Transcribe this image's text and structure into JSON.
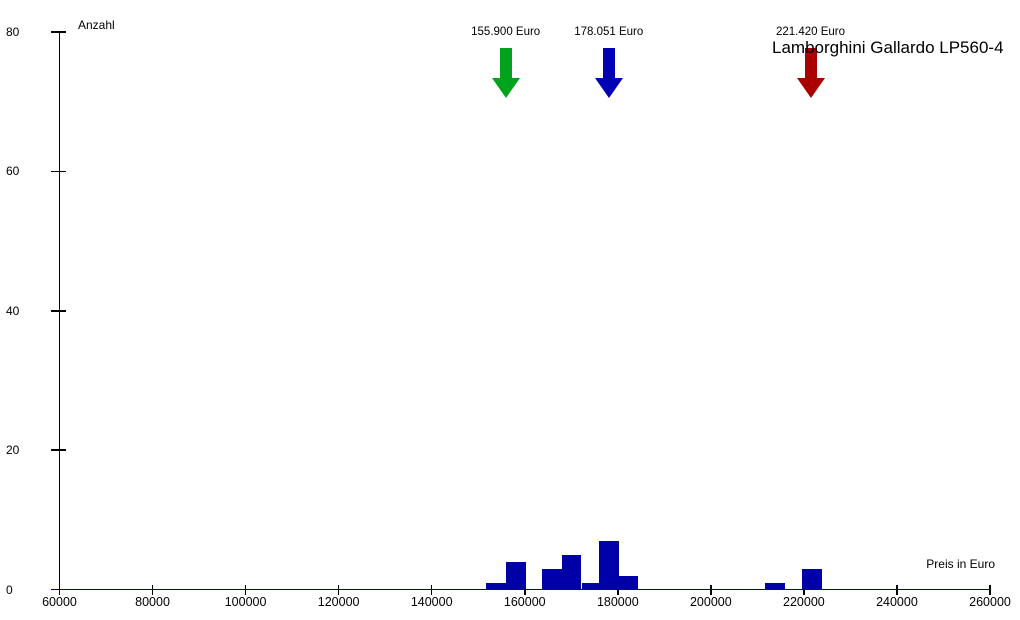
{
  "chart_data": {
    "type": "bar",
    "subtype": "histogram",
    "title": "Lamborghini Gallardo LP560-4",
    "xlabel": "Preis in Euro",
    "ylabel": "Anzahl",
    "xlim": [
      60000,
      260000
    ],
    "ylim": [
      0,
      80
    ],
    "grid": false,
    "legend": "none",
    "x_tick_values": [
      60000,
      80000,
      100000,
      120000,
      140000,
      160000,
      180000,
      200000,
      220000,
      240000,
      260000
    ],
    "x_tick_labels": [
      "60000",
      "80000",
      "100000",
      "120000",
      "140000",
      "160000",
      "180000",
      "200000",
      "220000",
      "240000",
      "260000"
    ],
    "y_tick_values": [
      0,
      20,
      40,
      60,
      80
    ],
    "y_tick_labels": [
      "0",
      "20",
      "40",
      "60",
      "80"
    ],
    "bar_color": "#0000A8",
    "axis_color": "#000090",
    "bins": [
      {
        "from": 151600,
        "to": 155900,
        "count": 1
      },
      {
        "from": 155900,
        "to": 160200,
        "count": 4
      },
      {
        "from": 163800,
        "to": 168100,
        "count": 3
      },
      {
        "from": 168100,
        "to": 172200,
        "count": 5
      },
      {
        "from": 172200,
        "to": 176000,
        "count": 1
      },
      {
        "from": 176000,
        "to": 180300,
        "count": 7
      },
      {
        "from": 180300,
        "to": 184400,
        "count": 2
      },
      {
        "from": 211600,
        "to": 215900,
        "count": 1
      },
      {
        "from": 219500,
        "to": 223800,
        "count": 3
      }
    ],
    "markers": [
      {
        "name": "min-price-arrow",
        "label": "155.900 Euro",
        "value": 155900,
        "color": "#00A41C"
      },
      {
        "name": "mean-price-arrow",
        "label": "178.051 Euro",
        "value": 178051,
        "color": "#0000B4"
      },
      {
        "name": "max-price-arrow",
        "label": "221.420 Euro",
        "value": 221420,
        "color": "#AA0000"
      }
    ]
  }
}
